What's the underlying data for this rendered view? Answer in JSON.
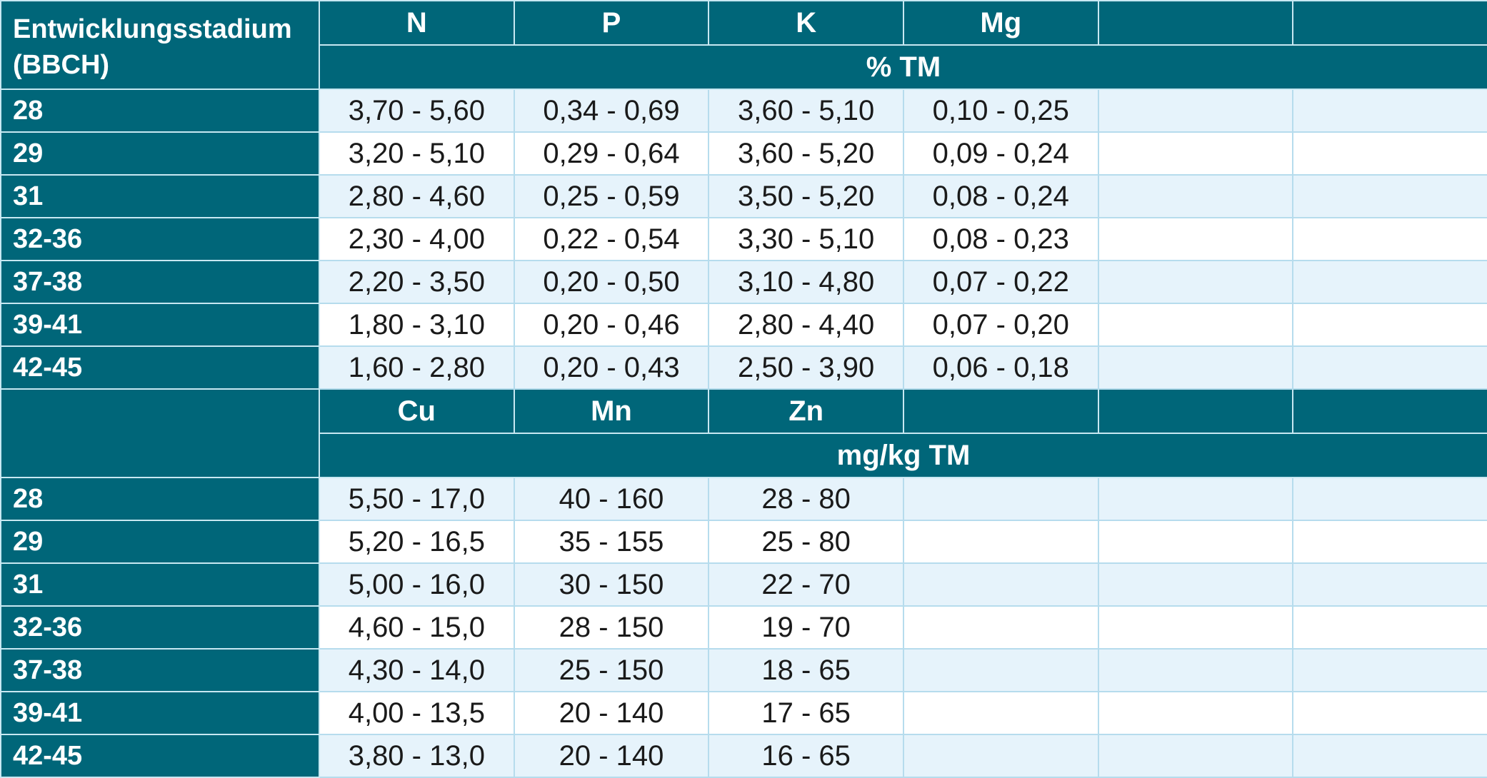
{
  "stage_header": [
    "Entwicklungsstadium",
    "(BBCH)"
  ],
  "section1": {
    "columns": [
      "N",
      "P",
      "K",
      "Mg",
      "",
      ""
    ],
    "unit": "% TM",
    "rows": [
      {
        "stage": "28",
        "values": [
          "3,70 - 5,60",
          "0,34 - 0,69",
          "3,60 - 5,10",
          "0,10 - 0,25",
          "",
          ""
        ]
      },
      {
        "stage": "29",
        "values": [
          "3,20 - 5,10",
          "0,29 - 0,64",
          "3,60 - 5,20",
          "0,09 - 0,24",
          "",
          ""
        ]
      },
      {
        "stage": "31",
        "values": [
          "2,80 - 4,60",
          "0,25 - 0,59",
          "3,50 - 5,20",
          "0,08 - 0,24",
          "",
          ""
        ]
      },
      {
        "stage": "32-36",
        "values": [
          "2,30 - 4,00",
          "0,22 - 0,54",
          "3,30 - 5,10",
          "0,08 - 0,23",
          "",
          ""
        ]
      },
      {
        "stage": "37-38",
        "values": [
          "2,20 - 3,50",
          "0,20 - 0,50",
          "3,10 - 4,80",
          "0,07 - 0,22",
          "",
          ""
        ]
      },
      {
        "stage": "39-41",
        "values": [
          "1,80 - 3,10",
          "0,20 - 0,46",
          "2,80 - 4,40",
          "0,07 - 0,20",
          "",
          ""
        ]
      },
      {
        "stage": "42-45",
        "values": [
          "1,60 - 2,80",
          "0,20 - 0,43",
          "2,50 - 3,90",
          "0,06 - 0,18",
          "",
          ""
        ]
      }
    ]
  },
  "section2": {
    "columns": [
      "Cu",
      "Mn",
      "Zn",
      "",
      "",
      ""
    ],
    "unit": "mg/kg TM",
    "rows": [
      {
        "stage": "28",
        "values": [
          "5,50 - 17,0",
          "40 - 160",
          "28 - 80",
          "",
          "",
          ""
        ]
      },
      {
        "stage": "29",
        "values": [
          "5,20 - 16,5",
          "35 - 155",
          "25 - 80",
          "",
          "",
          ""
        ]
      },
      {
        "stage": "31",
        "values": [
          "5,00 - 16,0",
          "30 - 150",
          "22 - 70",
          "",
          "",
          ""
        ]
      },
      {
        "stage": "32-36",
        "values": [
          "4,60 - 15,0",
          "28 - 150",
          "19 - 70",
          "",
          "",
          ""
        ]
      },
      {
        "stage": "37-38",
        "values": [
          "4,30 - 14,0",
          "25 - 150",
          "18 - 65",
          "",
          "",
          ""
        ]
      },
      {
        "stage": "39-41",
        "values": [
          "4,00 - 13,5",
          "20 - 140",
          "17 - 65",
          "",
          "",
          ""
        ]
      },
      {
        "stage": "42-45",
        "values": [
          "3,80 - 13,0",
          "20 - 140",
          "16 - 65",
          "",
          "",
          ""
        ]
      }
    ]
  },
  "colors": {
    "header_bg": "#006679",
    "header_text": "#ffffff",
    "row_alt_bg": "#e6f3fb",
    "row_plain_bg": "#ffffff",
    "grid_line": "#b6dced"
  }
}
